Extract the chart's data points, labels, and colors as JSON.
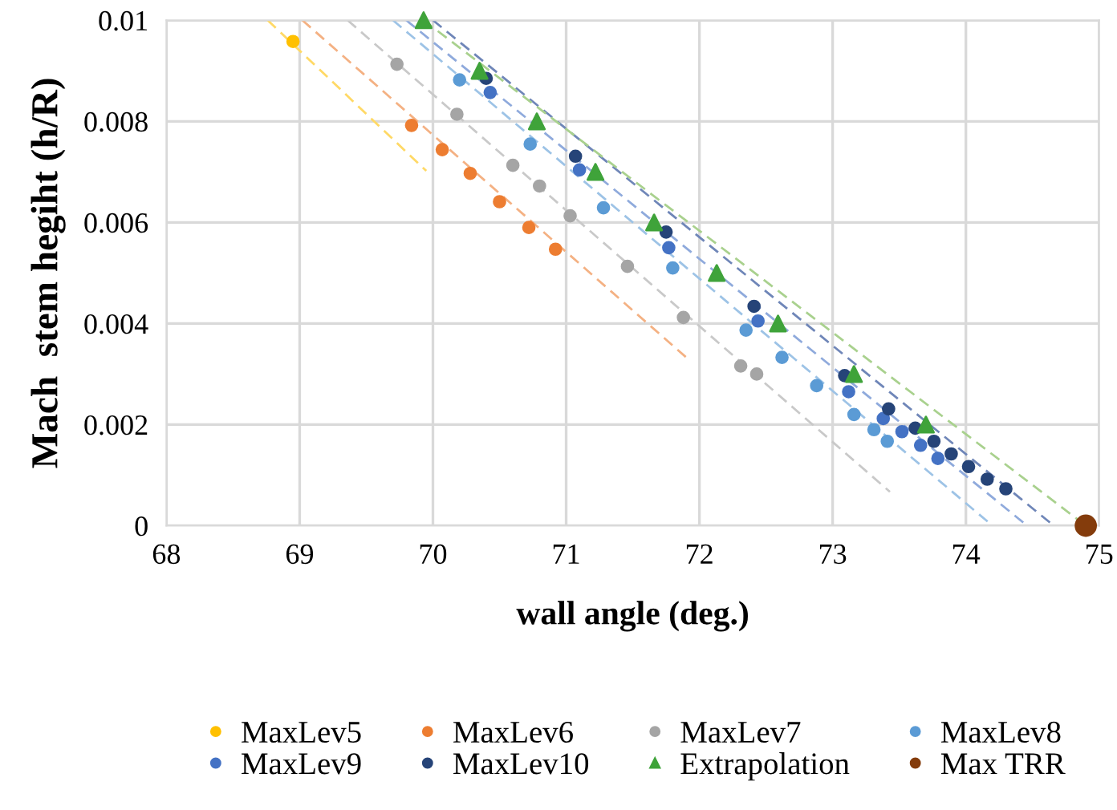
{
  "chart_data": {
    "type": "scatter",
    "xlabel": "wall angle (deg.)",
    "ylabel": "Mach  stem hegiht (h/R)",
    "xlim": [
      68,
      75
    ],
    "xticks": [
      68,
      69,
      70,
      71,
      72,
      73,
      74,
      75
    ],
    "ylim": [
      0,
      0.01
    ],
    "yticks": [
      0,
      0.002,
      0.004,
      0.006,
      0.008,
      0.01
    ],
    "grid": true,
    "legend": "bottom",
    "marker": "circle",
    "series": [
      {
        "type": "line",
        "marker": "none",
        "line_style": "dashed",
        "color": "#ffd966",
        "x": [
          68.76,
          69.95
        ],
        "values": [
          0.01,
          0.00702
        ]
      },
      {
        "type": "line",
        "marker": "none",
        "line_style": "dashed",
        "color": "#f4b183",
        "x": [
          69.02,
          71.91
        ],
        "values": [
          0.01,
          0.00331
        ]
      },
      {
        "type": "line",
        "marker": "none",
        "line_style": "dashed",
        "color": "#c9c9c9",
        "x": [
          69.36,
          73.43
        ],
        "values": [
          0.01,
          0.00067
        ]
      },
      {
        "type": "line",
        "marker": "none",
        "line_style": "dashed",
        "color": "#9dc3e6",
        "x": [
          69.7,
          74.2
        ],
        "values": [
          0.01,
          0
        ]
      },
      {
        "type": "line",
        "marker": "none",
        "line_style": "dashed",
        "color": "#8faadc",
        "x": [
          69.8,
          74.46
        ],
        "values": [
          0.01,
          0
        ]
      },
      {
        "type": "line",
        "marker": "none",
        "line_style": "dashed",
        "color": "#6f86b8",
        "x": [
          70.0,
          74.66
        ],
        "values": [
          0.01,
          0
        ]
      },
      {
        "type": "line",
        "marker": "none",
        "line_style": "dashed",
        "color": "#a9d18e",
        "x": [
          69.93,
          74.9
        ],
        "values": [
          0.01,
          0
        ]
      },
      {
        "name": "MaxLev5",
        "color": "#ffc000",
        "x": [
          68.95
        ],
        "values": [
          0.00958
        ]
      },
      {
        "name": "MaxLev6",
        "color": "#ed7d31",
        "x": [
          69.84,
          70.07,
          70.28,
          70.5,
          70.72,
          70.92
        ],
        "values": [
          0.00792,
          0.00744,
          0.00697,
          0.00641,
          0.0059,
          0.00547
        ]
      },
      {
        "name": "MaxLev7",
        "color": "#a5a5a5",
        "x": [
          69.73,
          70.18,
          70.6,
          70.8,
          71.03,
          71.46,
          71.88,
          72.31,
          72.43
        ],
        "values": [
          0.00913,
          0.00814,
          0.00713,
          0.00672,
          0.00613,
          0.00513,
          0.00412,
          0.00316,
          0.003
        ]
      },
      {
        "name": "MaxLev8",
        "color": "#5b9bd5",
        "x": [
          70.2,
          70.73,
          71.28,
          71.8,
          72.35,
          72.62,
          72.88,
          73.16,
          73.31,
          73.41
        ],
        "values": [
          0.00882,
          0.00755,
          0.00629,
          0.0051,
          0.00387,
          0.00333,
          0.00277,
          0.0022,
          0.0019,
          0.00167
        ]
      },
      {
        "name": "MaxLev9",
        "color": "#4472c4",
        "x": [
          70.43,
          71.1,
          71.77,
          72.44,
          73.12,
          73.38,
          73.52,
          73.66,
          73.79
        ],
        "values": [
          0.00857,
          0.00704,
          0.0055,
          0.00405,
          0.00265,
          0.00212,
          0.00186,
          0.00159,
          0.00133
        ]
      },
      {
        "name": "MaxLev10",
        "color": "#264478",
        "x": [
          70.4,
          71.07,
          71.75,
          72.41,
          73.09,
          73.42,
          73.62,
          73.76,
          73.89,
          74.02,
          74.16,
          74.3
        ],
        "values": [
          0.00885,
          0.00731,
          0.00581,
          0.00434,
          0.00297,
          0.00231,
          0.00193,
          0.00167,
          0.00142,
          0.00117,
          0.00092,
          0.00073
        ]
      },
      {
        "name": "Extrapolation",
        "color": "#3fa33a",
        "marker": "triangle",
        "x": [
          69.93,
          70.35,
          70.78,
          71.22,
          71.66,
          72.13,
          72.59,
          73.16,
          73.7
        ],
        "values": [
          0.01,
          0.009,
          0.008,
          0.007,
          0.006,
          0.005,
          0.004,
          0.003,
          0.002
        ]
      },
      {
        "name": "Max TRR",
        "color": "#843c0c",
        "x": [
          74.9
        ],
        "values": [
          0
        ]
      }
    ]
  }
}
